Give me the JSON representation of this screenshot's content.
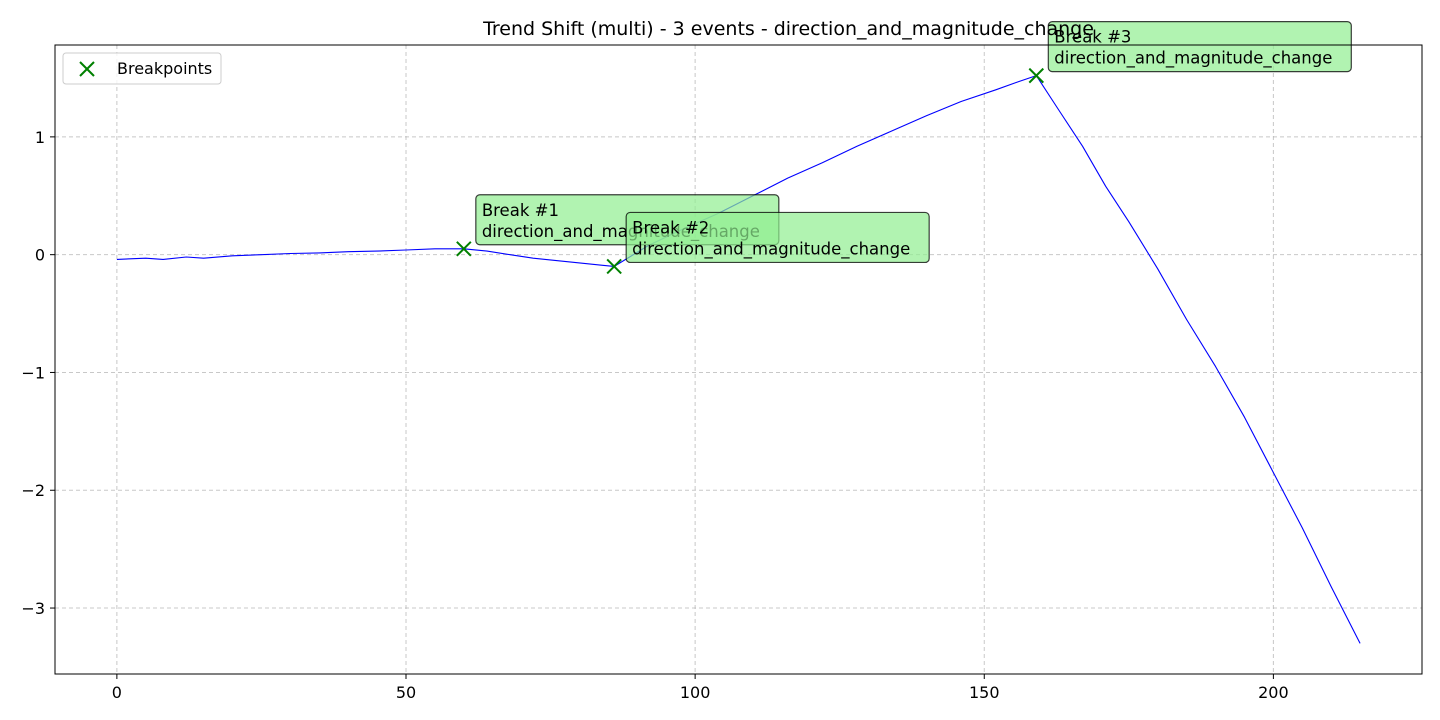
{
  "chart_data": {
    "type": "line",
    "title": "Trend Shift (multi) - 3 events - direction_and_magnitude_change",
    "xlabel": "",
    "ylabel": "",
    "xlim": [
      -10.7,
      225.7
    ],
    "ylim": [
      -3.56,
      1.78
    ],
    "xticks": [
      0,
      50,
      100,
      150,
      200
    ],
    "yticks": [
      -3,
      -2,
      -1,
      0,
      1
    ],
    "grid": true,
    "legend": {
      "placement": "top-left",
      "entries": [
        "Breakpoints"
      ]
    },
    "series": [
      {
        "color": "#0000ff",
        "x": [
          0,
          5,
          8,
          12,
          15,
          20,
          25,
          30,
          35,
          40,
          45,
          50,
          55,
          60,
          64,
          68,
          72,
          76,
          80,
          84,
          86,
          92,
          98,
          104,
          110,
          116,
          122,
          128,
          134,
          140,
          146,
          152,
          156,
          159,
          163,
          167,
          171,
          175,
          180,
          185,
          190,
          195,
          200,
          205,
          210,
          215
        ],
        "y": [
          -0.04,
          -0.03,
          -0.04,
          -0.02,
          -0.03,
          -0.01,
          0.0,
          0.01,
          0.015,
          0.025,
          0.03,
          0.04,
          0.05,
          0.05,
          0.03,
          0.0,
          -0.03,
          -0.05,
          -0.07,
          -0.09,
          -0.1,
          0.08,
          0.22,
          0.35,
          0.5,
          0.65,
          0.78,
          0.92,
          1.05,
          1.18,
          1.3,
          1.4,
          1.47,
          1.52,
          1.22,
          0.92,
          0.58,
          0.28,
          -0.12,
          -0.55,
          -0.95,
          -1.38,
          -1.85,
          -2.32,
          -2.82,
          -3.3
        ]
      }
    ],
    "breakpoints": {
      "name": "Breakpoints",
      "color": "#008000",
      "points": [
        {
          "x": 60,
          "y": 0.05
        },
        {
          "x": 86,
          "y": -0.1
        },
        {
          "x": 159,
          "y": 1.52
        }
      ]
    },
    "annotations": [
      {
        "lines": [
          "Break #1",
          "direction_and_magnitude_change"
        ],
        "x": 60,
        "y": 0.05,
        "fill": "#90ee90"
      },
      {
        "lines": [
          "Break #2",
          "direction_and_magnitude_change"
        ],
        "x": 86,
        "y": -0.1,
        "fill": "#90ee90"
      },
      {
        "lines": [
          "Break #3",
          "direction_and_magnitude_change"
        ],
        "x": 159,
        "y": 1.52,
        "fill": "#90ee90"
      }
    ]
  }
}
